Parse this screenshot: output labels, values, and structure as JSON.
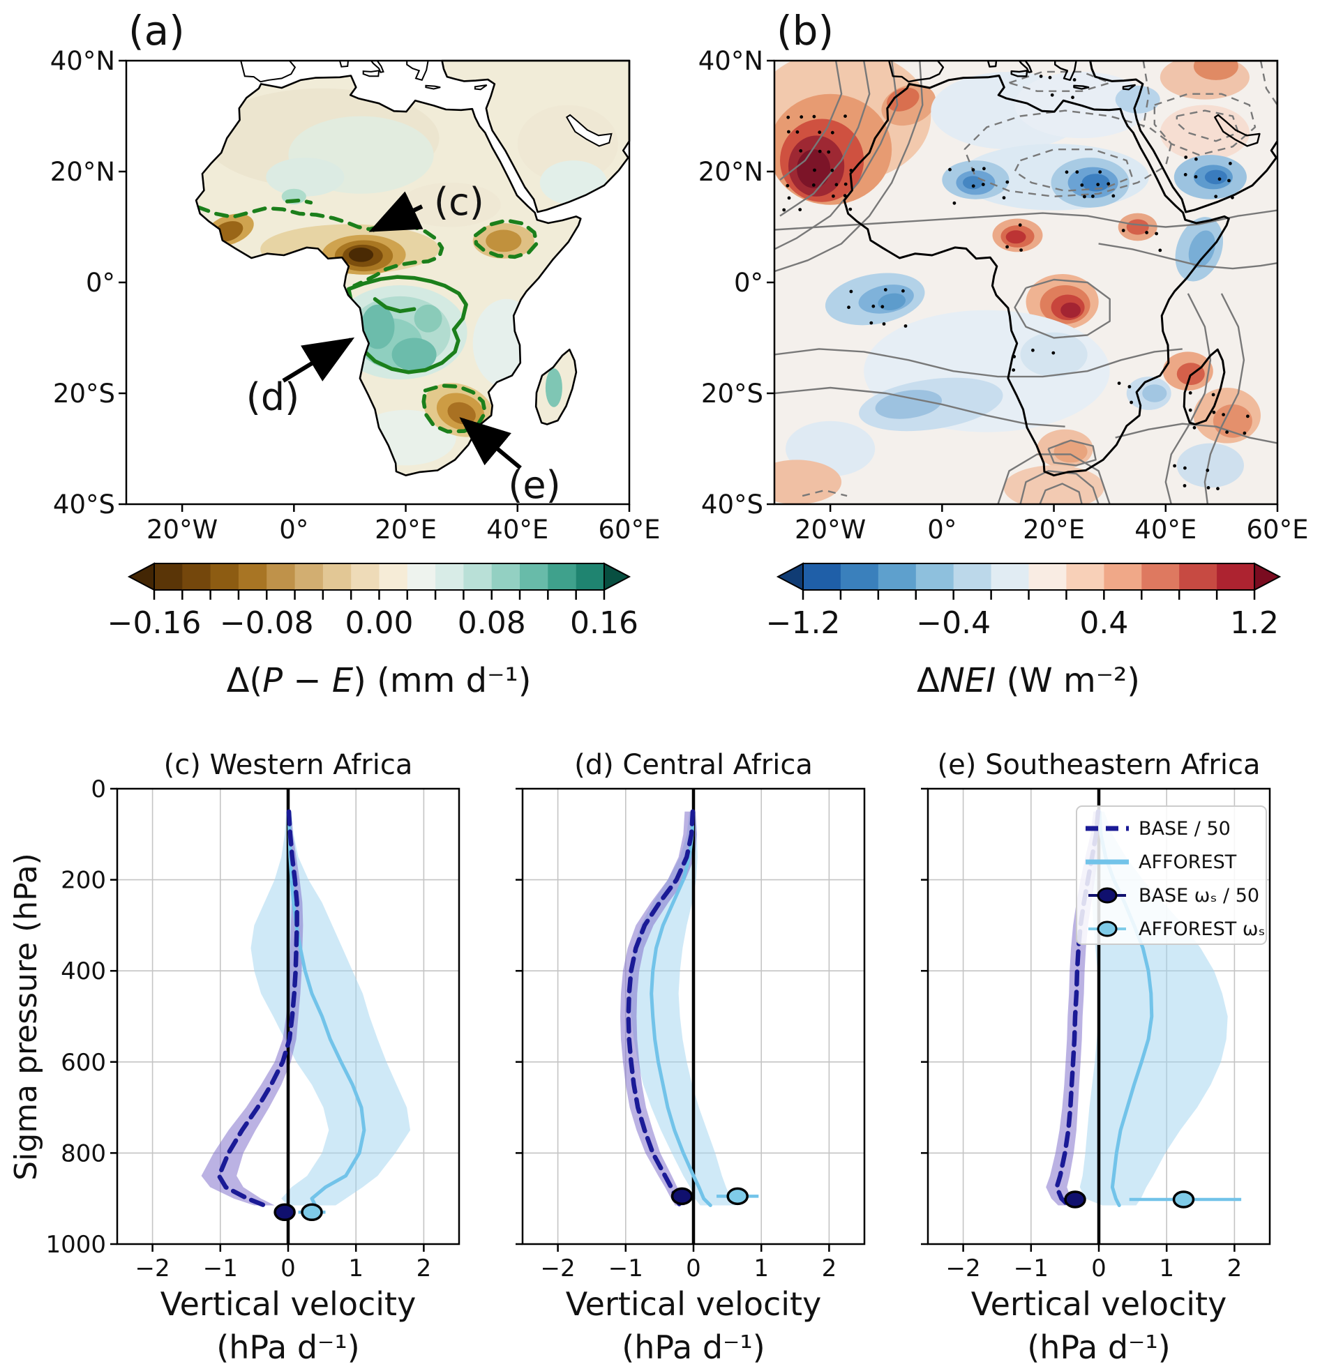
{
  "panel_a": {
    "title": "(a)",
    "xticks": [
      "20°W",
      "0°",
      "20°E",
      "40°E",
      "60°E"
    ],
    "yticks": [
      "40°N",
      "20°N",
      "0°",
      "20°S",
      "40°S"
    ],
    "annotations": [
      "(c)",
      "(d)",
      "(e)"
    ],
    "colorbar": {
      "tick_labels": [
        "−0.16",
        "−0.08",
        "0.00",
        "0.08",
        "0.16"
      ],
      "label_text": "Δ(P − E) (mm d⁻¹)",
      "label_parts": [
        [
          "Δ(",
          false
        ],
        [
          "P",
          true
        ],
        [
          " − ",
          false
        ],
        [
          "E",
          true
        ],
        [
          ") (mm d⁻¹)",
          false
        ]
      ]
    }
  },
  "panel_b": {
    "title": "(b)",
    "xticks": [
      "20°W",
      "0°",
      "20°E",
      "40°E",
      "60°E"
    ],
    "yticks": [
      "40°N",
      "20°N",
      "0°",
      "20°S",
      "40°S"
    ],
    "colorbar": {
      "tick_labels": [
        "−1.2",
        "−0.4",
        "0.4",
        "1.2"
      ],
      "label_text": "ΔNEI (W m⁻²)",
      "label_parts": [
        [
          "Δ",
          false
        ],
        [
          "NEI",
          true
        ],
        [
          " (W m⁻²)",
          false
        ]
      ]
    }
  },
  "profiles": {
    "y_axis_label": "Sigma pressure (hPa)",
    "x_axis_label_top": "Vertical velocity",
    "x_axis_label_bottom": "(hPa d⁻¹)",
    "yticks": [
      "0",
      "200",
      "400",
      "600",
      "800",
      "1000"
    ],
    "xticks": [
      "−2",
      "−1",
      "0",
      "1",
      "2"
    ],
    "legend": [
      {
        "label": "BASE / 50",
        "swatch": "dashed-line"
      },
      {
        "label": "AFFOREST",
        "swatch": "solid-line"
      },
      {
        "label": "BASE ωₛ / 50",
        "swatch": "filled-marker"
      },
      {
        "label": "AFFOREST ωₛ",
        "swatch": "open-marker"
      }
    ]
  },
  "colors": {
    "base_line": "#1a1a96",
    "afforest_line": "#72c3e9",
    "base_band": "#8372cc",
    "afforest_band": "#9fd4ef",
    "base_marker": "#10106e",
    "afforest_marker": "#7fcbe8",
    "green_contour": "#1b7f1b",
    "map_a_palette": [
      "#5a3507",
      "#74470c",
      "#8d5c12",
      "#a87524",
      "#bf924a",
      "#d2ae71",
      "#e2c795",
      "#eedbb8",
      "#f6ecd7",
      "#eef3ee",
      "#d8ece7",
      "#b9e0d7",
      "#93d0c2",
      "#68bba9",
      "#3fa18c",
      "#1f8470"
    ],
    "map_a_under": "#432604",
    "map_a_over": "#084f41",
    "map_b_palette": [
      "#1f5fa8",
      "#3a80bc",
      "#5ea0cd",
      "#8ec0dd",
      "#bcd8ea",
      "#e1ecf3",
      "#f9ece3",
      "#f8d0b8",
      "#f0a888",
      "#de7960",
      "#c74a42",
      "#ad2330"
    ],
    "map_b_under": "#103c74",
    "map_b_over": "#7a0c20"
  },
  "chart_data": [
    {
      "id": "map_a",
      "type": "heatmap",
      "title": "(a)",
      "variable": "Δ(P − E)",
      "units": "mm d⁻¹",
      "lon_range": [
        -30,
        60
      ],
      "lat_range": [
        -40,
        40
      ],
      "lon_tick_values": [
        -20,
        0,
        20,
        40,
        60
      ],
      "lat_tick_values": [
        40,
        20,
        0,
        -20,
        -40
      ],
      "colorbar_range": [
        -0.16,
        0.16
      ],
      "colorbar_tick_values": [
        -0.16,
        -0.08,
        0.0,
        0.08,
        0.16
      ],
      "regions": [
        {
          "label": "(c)",
          "description": "drying maximum (negative Δ(P−E)) over West/Central Sahel, dashed green contour"
        },
        {
          "label": "(d)",
          "description": "wetting (positive Δ(P−E)) over Congo basin, solid green contour"
        },
        {
          "label": "(e)",
          "description": "drying over Southeastern Africa, dashed green contour"
        }
      ]
    },
    {
      "id": "map_b",
      "type": "heatmap",
      "title": "(b)",
      "variable": "ΔNEI",
      "units": "W m⁻²",
      "lon_range": [
        -30,
        60
      ],
      "lat_range": [
        -40,
        40
      ],
      "lon_tick_values": [
        -20,
        0,
        20,
        40,
        60
      ],
      "lat_tick_values": [
        40,
        20,
        0,
        -20,
        -40
      ],
      "colorbar_range": [
        -1.2,
        1.2
      ],
      "colorbar_tick_values": [
        -1.2,
        -0.4,
        0.4,
        1.2
      ],
      "overlays": "gray solid/dashed contours and black stippling dots"
    },
    {
      "id": "profile_c",
      "type": "line",
      "title": "(c) Western Africa",
      "xlabel": "Vertical velocity (hPa d⁻¹)",
      "ylabel": "Sigma pressure (hPa)",
      "xlim": [
        -2.52,
        2.52
      ],
      "ylim": [
        1000,
        0
      ],
      "xtick_values": [
        -2,
        -1,
        0,
        1,
        2
      ],
      "ytick_values": [
        0,
        200,
        400,
        600,
        800,
        1000
      ],
      "levels_hPa": [
        50,
        100,
        150,
        200,
        250,
        300,
        350,
        400,
        450,
        500,
        550,
        600,
        650,
        700,
        750,
        800,
        850,
        875,
        900,
        915
      ],
      "series": [
        {
          "name": "BASE / 50",
          "values": [
            0.01,
            0.03,
            0.06,
            0.1,
            0.13,
            0.13,
            0.12,
            0.11,
            0.09,
            0.06,
            0.02,
            -0.08,
            -0.25,
            -0.45,
            -0.68,
            -0.88,
            -1.02,
            -0.92,
            -0.6,
            -0.35
          ],
          "band_lo": [
            -0.02,
            -0.01,
            0.0,
            0.03,
            0.05,
            0.04,
            0.03,
            0.02,
            0.0,
            -0.03,
            -0.08,
            -0.2,
            -0.4,
            -0.62,
            -0.88,
            -1.1,
            -1.28,
            -1.15,
            -0.8,
            -0.5
          ],
          "band_hi": [
            0.04,
            0.07,
            0.12,
            0.17,
            0.21,
            0.22,
            0.21,
            0.2,
            0.18,
            0.15,
            0.12,
            0.04,
            -0.1,
            -0.28,
            -0.48,
            -0.66,
            -0.76,
            -0.66,
            -0.4,
            -0.2
          ]
        },
        {
          "name": "AFFOREST",
          "values": [
            0.01,
            0.02,
            0.03,
            0.05,
            0.08,
            0.12,
            0.18,
            0.25,
            0.35,
            0.5,
            0.62,
            0.78,
            0.95,
            1.08,
            1.12,
            1.05,
            0.85,
            0.55,
            0.35,
            0.4
          ],
          "band_lo": [
            -0.03,
            -0.05,
            -0.1,
            -0.2,
            -0.35,
            -0.5,
            -0.55,
            -0.5,
            -0.4,
            -0.22,
            -0.05,
            0.12,
            0.35,
            0.52,
            0.6,
            0.5,
            0.28,
            0.05,
            -0.1,
            0.0
          ],
          "band_hi": [
            0.05,
            0.08,
            0.15,
            0.3,
            0.5,
            0.65,
            0.8,
            0.95,
            1.1,
            1.2,
            1.32,
            1.45,
            1.6,
            1.75,
            1.8,
            1.58,
            1.32,
            1.1,
            0.85,
            0.7
          ]
        }
      ],
      "surface_markers": [
        {
          "name": "BASE ωₛ / 50",
          "x": -0.05,
          "pressure": 930,
          "xerr": [
            -0.15,
            0.05
          ]
        },
        {
          "name": "AFFOREST ωₛ",
          "x": 0.35,
          "pressure": 930,
          "xerr": [
            0.15,
            0.55
          ]
        }
      ]
    },
    {
      "id": "profile_d",
      "type": "line",
      "title": "(d) Central Africa",
      "xlabel": "Vertical velocity (hPa d⁻¹)",
      "ylabel": "Sigma pressure (hPa)",
      "xlim": [
        -2.52,
        2.52
      ],
      "ylim": [
        1000,
        0
      ],
      "xtick_values": [
        -2,
        -1,
        0,
        1,
        2
      ],
      "ytick_values": [
        0,
        200,
        400,
        600,
        800,
        1000
      ],
      "levels_hPa": [
        50,
        100,
        150,
        200,
        250,
        300,
        350,
        400,
        450,
        500,
        550,
        600,
        650,
        700,
        750,
        800,
        850,
        875,
        900,
        915
      ],
      "series": [
        {
          "name": "BASE / 50",
          "values": [
            -0.01,
            -0.03,
            -0.1,
            -0.25,
            -0.5,
            -0.72,
            -0.85,
            -0.92,
            -0.95,
            -0.96,
            -0.95,
            -0.92,
            -0.88,
            -0.82,
            -0.72,
            -0.6,
            -0.42,
            -0.33,
            -0.25,
            -0.2
          ],
          "band_lo": [
            -0.13,
            -0.15,
            -0.22,
            -0.38,
            -0.63,
            -0.85,
            -0.97,
            -1.04,
            -1.07,
            -1.08,
            -1.07,
            -1.04,
            -1.0,
            -0.94,
            -0.84,
            -0.71,
            -0.52,
            -0.42,
            -0.33,
            -0.27
          ],
          "band_hi": [
            0.03,
            0.05,
            0.02,
            -0.12,
            -0.37,
            -0.59,
            -0.73,
            -0.8,
            -0.83,
            -0.84,
            -0.83,
            -0.8,
            -0.76,
            -0.7,
            -0.6,
            -0.49,
            -0.32,
            -0.24,
            -0.17,
            -0.13
          ]
        },
        {
          "name": "AFFOREST",
          "values": [
            -0.01,
            -0.02,
            -0.06,
            -0.15,
            -0.3,
            -0.45,
            -0.55,
            -0.6,
            -0.62,
            -0.6,
            -0.57,
            -0.52,
            -0.45,
            -0.38,
            -0.28,
            -0.15,
            0.0,
            0.08,
            0.15,
            0.25
          ],
          "band_lo": [
            -0.06,
            -0.1,
            -0.2,
            -0.38,
            -0.6,
            -0.78,
            -0.88,
            -0.93,
            -0.95,
            -0.92,
            -0.88,
            -0.82,
            -0.74,
            -0.62,
            -0.48,
            -0.32,
            -0.15,
            -0.05,
            0.02,
            0.1
          ],
          "band_hi": [
            0.03,
            0.05,
            0.06,
            0.04,
            -0.02,
            -0.1,
            -0.16,
            -0.2,
            -0.22,
            -0.2,
            -0.16,
            -0.1,
            -0.02,
            0.08,
            0.2,
            0.32,
            0.42,
            0.48,
            0.55,
            0.62
          ]
        }
      ],
      "surface_markers": [
        {
          "name": "BASE ωₛ / 50",
          "x": -0.17,
          "pressure": 895,
          "xerr": [
            -0.28,
            -0.06
          ]
        },
        {
          "name": "AFFOREST ωₛ",
          "x": 0.65,
          "pressure": 895,
          "xerr": [
            0.34,
            0.96
          ]
        }
      ]
    },
    {
      "id": "profile_e",
      "type": "line",
      "title": "(e) Southeastern Africa",
      "xlabel": "Vertical velocity (hPa d⁻¹)",
      "ylabel": "Sigma pressure (hPa)",
      "xlim": [
        -2.52,
        2.52
      ],
      "ylim": [
        1000,
        0
      ],
      "xtick_values": [
        -2,
        -1,
        0,
        1,
        2
      ],
      "ytick_values": [
        0,
        200,
        400,
        600,
        800,
        1000
      ],
      "levels_hPa": [
        50,
        100,
        150,
        200,
        250,
        300,
        350,
        400,
        450,
        500,
        550,
        600,
        650,
        700,
        750,
        800,
        850,
        875,
        900,
        915
      ],
      "series": [
        {
          "name": "BASE / 50",
          "values": [
            -0.01,
            -0.04,
            -0.1,
            -0.16,
            -0.22,
            -0.27,
            -0.3,
            -0.32,
            -0.33,
            -0.35,
            -0.36,
            -0.38,
            -0.4,
            -0.42,
            -0.45,
            -0.5,
            -0.57,
            -0.62,
            -0.55,
            -0.45
          ],
          "band_lo": [
            -0.08,
            -0.12,
            -0.2,
            -0.27,
            -0.33,
            -0.38,
            -0.41,
            -0.43,
            -0.44,
            -0.46,
            -0.47,
            -0.49,
            -0.51,
            -0.54,
            -0.58,
            -0.64,
            -0.72,
            -0.78,
            -0.7,
            -0.6
          ],
          "band_hi": [
            0.04,
            0.03,
            -0.01,
            -0.06,
            -0.11,
            -0.16,
            -0.19,
            -0.21,
            -0.22,
            -0.24,
            -0.25,
            -0.27,
            -0.29,
            -0.31,
            -0.33,
            -0.37,
            -0.43,
            -0.47,
            -0.41,
            -0.32
          ]
        },
        {
          "name": "AFFOREST",
          "values": [
            0.01,
            0.03,
            0.1,
            0.22,
            0.38,
            0.52,
            0.65,
            0.73,
            0.77,
            0.78,
            0.73,
            0.63,
            0.52,
            0.42,
            0.32,
            0.26,
            0.22,
            0.2,
            0.25,
            0.3
          ],
          "band_lo": [
            -0.03,
            -0.05,
            -0.08,
            -0.1,
            -0.1,
            -0.08,
            -0.05,
            -0.02,
            0.0,
            0.0,
            -0.03,
            -0.06,
            -0.1,
            -0.14,
            -0.17,
            -0.2,
            -0.24,
            -0.28,
            -0.2,
            0.05
          ],
          "band_hi": [
            0.08,
            0.2,
            0.4,
            0.65,
            0.95,
            1.25,
            1.5,
            1.7,
            1.82,
            1.9,
            1.88,
            1.8,
            1.65,
            1.45,
            1.2,
            0.98,
            0.8,
            0.7,
            0.62,
            0.55
          ]
        }
      ],
      "surface_markers": [
        {
          "name": "BASE ωₛ / 50",
          "x": -0.35,
          "pressure": 902,
          "xerr": [
            -0.5,
            -0.2
          ]
        },
        {
          "name": "AFFOREST ωₛ",
          "x": 1.25,
          "pressure": 902,
          "xerr": [
            0.45,
            2.1
          ]
        }
      ]
    }
  ]
}
